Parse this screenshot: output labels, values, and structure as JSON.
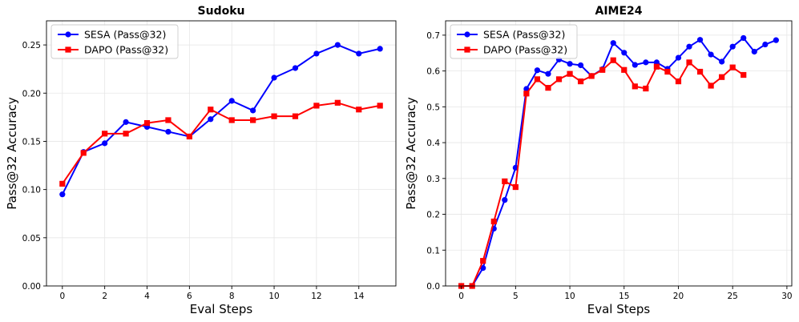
{
  "chart_data": [
    {
      "type": "line",
      "title": "Sudoku",
      "xlabel": "Eval Steps",
      "ylabel": "Pass@32 Accuracy",
      "xlim": [
        -0.75,
        15.75
      ],
      "ylim": [
        0.0,
        0.275
      ],
      "xticks": [
        0,
        2,
        4,
        6,
        8,
        10,
        12,
        14
      ],
      "yticks": [
        0.0,
        0.05,
        0.1,
        0.15,
        0.2,
        0.25
      ],
      "xtick_labels": [
        "0",
        "2",
        "4",
        "6",
        "8",
        "10",
        "12",
        "14"
      ],
      "ytick_labels": [
        "0.00",
        "0.05",
        "0.10",
        "0.15",
        "0.20",
        "0.25"
      ],
      "grid": true,
      "legend_position": "top-left",
      "series": [
        {
          "name": "SESA (Pass@32)",
          "color": "#0000ff",
          "marker": "circle",
          "x": [
            0,
            1,
            2,
            3,
            4,
            5,
            6,
            7,
            8,
            9,
            10,
            11,
            12,
            13,
            14,
            15
          ],
          "values": [
            0.095,
            0.139,
            0.148,
            0.17,
            0.165,
            0.16,
            0.155,
            0.173,
            0.192,
            0.182,
            0.216,
            0.226,
            0.241,
            0.25,
            0.241,
            0.246
          ]
        },
        {
          "name": "DAPO (Pass@32)",
          "color": "#ff0000",
          "marker": "square",
          "x": [
            0,
            1,
            2,
            3,
            4,
            5,
            6,
            7,
            8,
            9,
            10,
            11,
            12,
            13,
            14,
            15
          ],
          "values": [
            0.106,
            0.138,
            0.158,
            0.158,
            0.169,
            0.172,
            0.155,
            0.183,
            0.172,
            0.172,
            0.176,
            0.176,
            0.187,
            0.19,
            0.183,
            0.187
          ]
        }
      ]
    },
    {
      "type": "line",
      "title": "AIME24",
      "xlabel": "Eval Steps",
      "ylabel": "Pass@32 Accuracy",
      "xlim": [
        -1.45,
        30.45
      ],
      "ylim": [
        0.0,
        0.74
      ],
      "xticks": [
        0,
        5,
        10,
        15,
        20,
        25,
        30
      ],
      "yticks": [
        0.0,
        0.1,
        0.2,
        0.3,
        0.4,
        0.5,
        0.6,
        0.7
      ],
      "xtick_labels": [
        "0",
        "5",
        "10",
        "15",
        "20",
        "25",
        "30"
      ],
      "ytick_labels": [
        "0.0",
        "0.1",
        "0.2",
        "0.3",
        "0.4",
        "0.5",
        "0.6",
        "0.7"
      ],
      "grid": true,
      "legend_position": "top-left",
      "series": [
        {
          "name": "SESA (Pass@32)",
          "color": "#0000ff",
          "marker": "circle",
          "x": [
            0,
            1,
            2,
            3,
            4,
            5,
            6,
            7,
            8,
            9,
            10,
            11,
            12,
            13,
            14,
            15,
            16,
            17,
            18,
            19,
            20,
            21,
            22,
            23,
            24,
            25,
            26,
            27,
            28,
            29
          ],
          "values": [
            0.0,
            0.0,
            0.05,
            0.16,
            0.24,
            0.33,
            0.55,
            0.602,
            0.592,
            0.632,
            0.62,
            0.616,
            0.586,
            0.605,
            0.678,
            0.651,
            0.617,
            0.624,
            0.624,
            0.606,
            0.637,
            0.668,
            0.687,
            0.646,
            0.626,
            0.668,
            0.692,
            0.654,
            0.674,
            0.686
          ]
        },
        {
          "name": "DAPO (Pass@32)",
          "color": "#ff0000",
          "marker": "square",
          "x": [
            0,
            1,
            2,
            3,
            4,
            5,
            6,
            7,
            8,
            9,
            10,
            11,
            12,
            13,
            14,
            15,
            16,
            17,
            18,
            19,
            20,
            21,
            22,
            23,
            24,
            25,
            26
          ],
          "values": [
            0.0,
            0.0,
            0.07,
            0.18,
            0.292,
            0.276,
            0.537,
            0.577,
            0.553,
            0.577,
            0.592,
            0.571,
            0.586,
            0.603,
            0.63,
            0.603,
            0.557,
            0.551,
            0.612,
            0.598,
            0.571,
            0.624,
            0.598,
            0.559,
            0.583,
            0.61,
            0.589
          ]
        }
      ]
    }
  ]
}
